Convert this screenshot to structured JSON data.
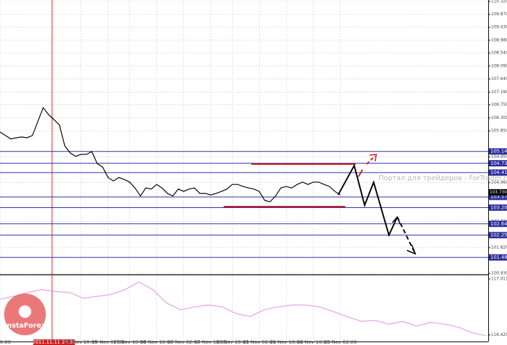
{
  "chart_data": [
    {
      "type": "line",
      "color": "#000000",
      "grid": true,
      "categories": [
        "ov 10:00",
        null,
        null,
        null,
        null,
        null,
        null,
        null,
        null,
        null,
        "2011.11.11 23:00",
        null,
        null,
        null,
        null,
        "14 Nov 10:00",
        null,
        null,
        null,
        null,
        "15 Nov 02:00",
        null,
        null,
        null,
        "15 Nov 18:00",
        null,
        null,
        null,
        null,
        "16 Nov 10:00",
        null,
        null,
        null,
        null,
        "17 Nov 02:00",
        null,
        null,
        null,
        null,
        "17 Nov 18:00",
        null,
        null,
        null,
        "18 Nov 10:00",
        null,
        null,
        null,
        null,
        "21 Nov 02:00",
        null,
        null,
        null,
        null,
        "21 Nov 10:00",
        null,
        null,
        null,
        null,
        "22 Nov 10:00",
        null,
        null,
        null,
        null,
        "23 Nov 02:00"
      ],
      "values": [
        105.81,
        105.69,
        105.57,
        105.61,
        105.64,
        105.61,
        105.69,
        106.17,
        106.65,
        106.41,
        106.24,
        106.05,
        105.33,
        105.09,
        104.97,
        105.04,
        105.04,
        105.13,
        104.72,
        104.6,
        104.24,
        104.12,
        104.24,
        104.17,
        104.08,
        103.88,
        103.6,
        103.88,
        103.84,
        104.0,
        103.88,
        103.69,
        103.6,
        103.84,
        103.76,
        103.84,
        103.88,
        103.69,
        103.69,
        103.64,
        103.69,
        103.76,
        103.84,
        104.0,
        104.0,
        103.93,
        103.88,
        103.84,
        103.76,
        103.45,
        103.4,
        103.6,
        103.88,
        103.93,
        103.88,
        104.0,
        104.08,
        104.0,
        104.08,
        104.08,
        104.0,
        103.93,
        103.76,
        103.64
      ],
      "ylim": [
        100.93,
        110.32
      ],
      "yticks": [
        {
          "value": 110.32,
          "label": "110.320"
        },
        {
          "value": 109.87,
          "label": "109.870"
        },
        {
          "value": 109.43,
          "label": "109.430"
        },
        {
          "value": 108.98,
          "label": "108.980"
        },
        {
          "value": 108.54,
          "label": "108.540"
        },
        {
          "value": 108.09,
          "label": "108.090"
        },
        {
          "value": 107.64,
          "label": "107.640"
        },
        {
          "value": 107.19,
          "label": "107.190"
        },
        {
          "value": 106.75,
          "label": "106.750"
        },
        {
          "value": 106.3,
          "label": "106.300"
        },
        {
          "value": 105.85,
          "label": "105.850"
        },
        {
          "value": 104.95,
          "label": "104.950"
        },
        {
          "value": 104.06,
          "label": "104.060"
        },
        {
          "value": 102.72,
          "label": "102.720"
        },
        {
          "value": 101.82,
          "label": "101.820"
        },
        {
          "value": 100.93,
          "label": "100.930"
        }
      ],
      "current_price": {
        "value": 103.73,
        "label": "103.730"
      },
      "levels": {
        "values": [
          105.14,
          104.73,
          104.41,
          103.57,
          103.2,
          102.64,
          102.25,
          101.48
        ],
        "value_labels": [
          "105.14",
          "104.73",
          "104.41",
          "103.57",
          "103.20",
          "102.64",
          "102.25",
          "101.48"
        ],
        "color": "#2a2a9a"
      },
      "watermark": "Портал для трейдеров - ForTrader.ru",
      "logo": "InstaForex"
    },
    {
      "type": "line",
      "color": "#e8a0e4",
      "values": [
        116.8,
        116.83,
        116.87,
        116.9,
        116.88,
        116.87,
        116.81,
        116.83,
        116.85,
        116.9,
        116.98,
        116.9,
        116.76,
        116.69,
        116.72,
        116.74,
        116.72,
        116.65,
        116.62,
        116.69,
        116.72,
        116.74,
        116.74,
        116.72,
        116.67,
        116.62,
        116.57,
        116.58,
        116.54,
        116.57,
        116.52,
        116.56,
        116.54,
        116.51,
        116.45,
        116.42
      ],
      "ylim": [
        116.36,
        117.04
      ],
      "yticks": [
        117.011,
        116.429
      ]
    }
  ]
}
